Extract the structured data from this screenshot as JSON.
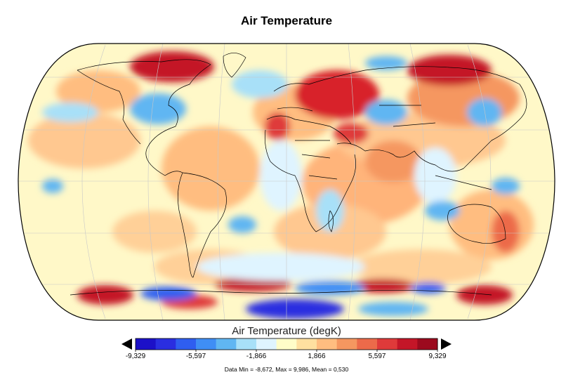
{
  "title": "Air Temperature",
  "colorbar": {
    "title": "Air Temperature (degK)",
    "ticks": [
      "-9,329",
      "-5,597",
      "-1,866",
      "1,866",
      "5,597",
      "9,329"
    ],
    "tick_values": [
      -9.329,
      -5.597,
      -1.866,
      1.866,
      5.597,
      9.329
    ],
    "range": [
      -9.329,
      9.329
    ],
    "colors": [
      "#1c10c8",
      "#2a2ee0",
      "#2f5ef0",
      "#3f8ef5",
      "#60b6f2",
      "#a8e0f8",
      "#dff4ff",
      "#fffdc8",
      "#ffe0a0",
      "#ffbd80",
      "#f59760",
      "#ec6a4a",
      "#df3a3a",
      "#c41628",
      "#9c0a1e"
    ]
  },
  "stats": "Data Min = -8,672, Max = 9,986, Mean = 0,530",
  "map": {
    "projection": "robinson",
    "background_color": "#fff8c8",
    "warm_anomaly_color": "#d8202a",
    "cold_anomaly_color": "#2a3ee6"
  }
}
